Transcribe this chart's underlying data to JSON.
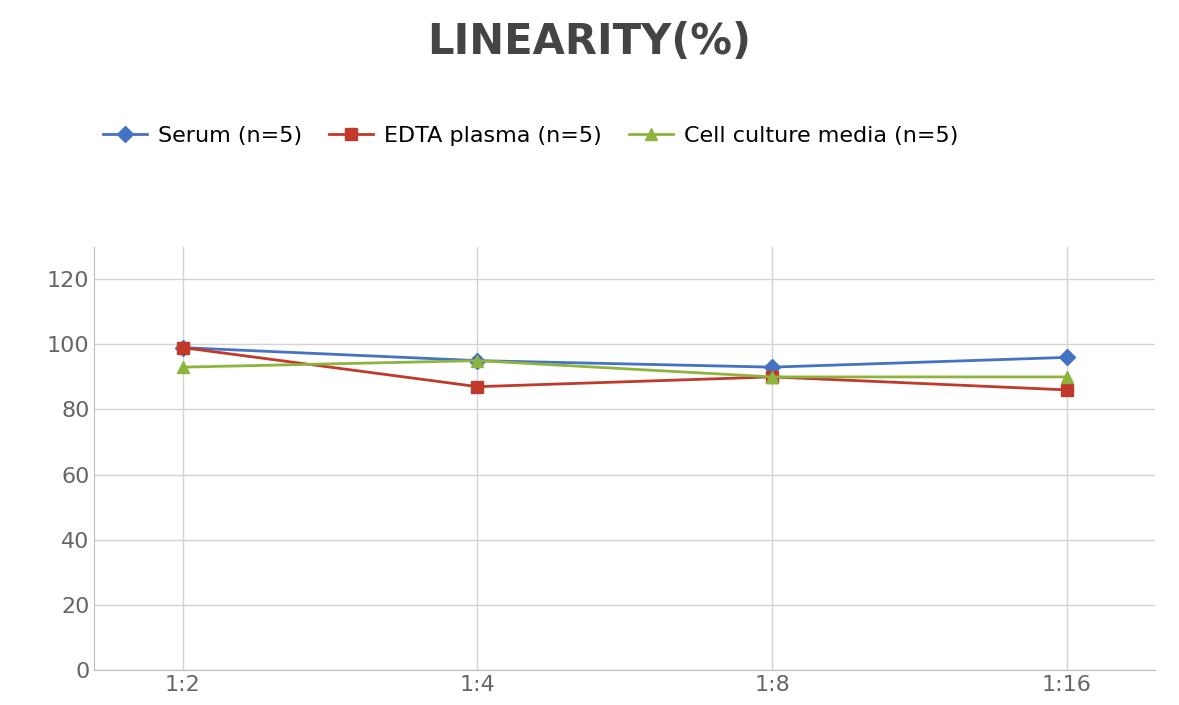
{
  "title": "LINEARITY(%)",
  "title_fontsize": 30,
  "title_fontweight": "bold",
  "x_labels": [
    "1:2",
    "1:4",
    "1:8",
    "1:16"
  ],
  "x_positions": [
    0,
    1,
    2,
    3
  ],
  "series": [
    {
      "label": "Serum (n=5)",
      "values": [
        99,
        95,
        93,
        96
      ],
      "color": "#4472C4",
      "marker": "D",
      "markersize": 8,
      "linewidth": 2
    },
    {
      "label": "EDTA plasma (n=5)",
      "values": [
        99,
        87,
        90,
        86
      ],
      "color": "#C0392B",
      "marker": "s",
      "markersize": 8,
      "linewidth": 2
    },
    {
      "label": "Cell culture media (n=5)",
      "values": [
        93,
        95,
        90,
        90
      ],
      "color": "#8DB53D",
      "marker": "^",
      "markersize": 9,
      "linewidth": 2
    }
  ],
  "ylim": [
    0,
    130
  ],
  "yticks": [
    0,
    20,
    40,
    60,
    80,
    100,
    120
  ],
  "grid_color": "#D3D3D3",
  "background_color": "#FFFFFF",
  "legend_fontsize": 16,
  "tick_fontsize": 16,
  "spine_color": "#BBBBBB",
  "title_color": "#444444"
}
